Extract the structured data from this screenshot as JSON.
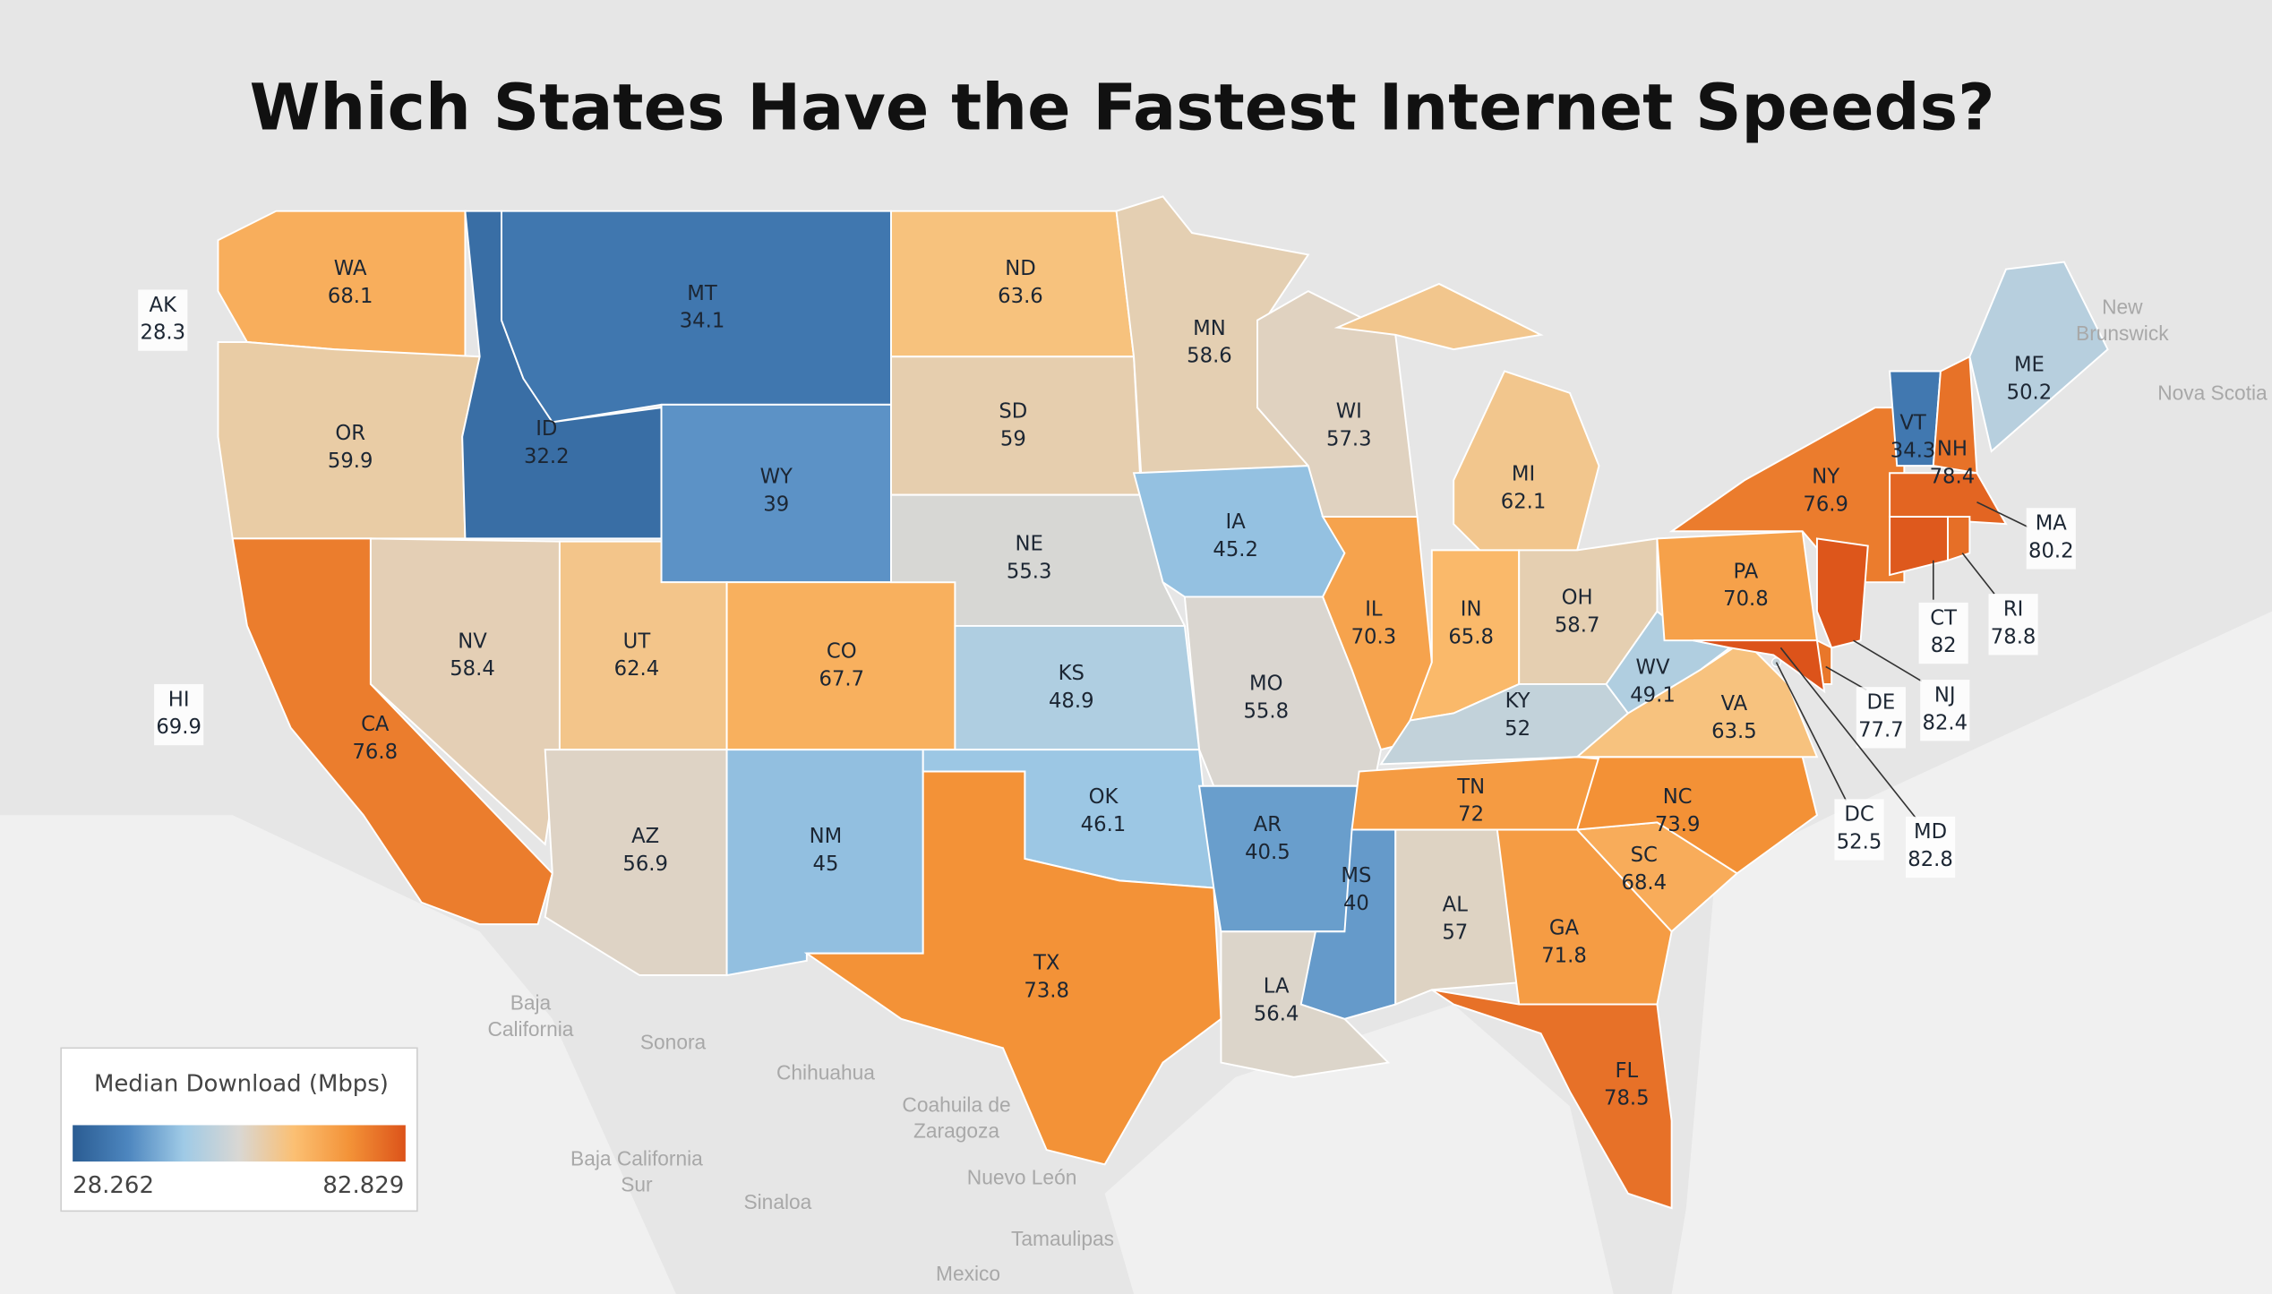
{
  "chart_data": {
    "type": "choropleth",
    "title": "Which States Have the Fastest Internet Speeds?",
    "states": [
      {
        "code": "WA",
        "value": 68.1
      },
      {
        "code": "OR",
        "value": 59.9
      },
      {
        "code": "CA",
        "value": 76.8
      },
      {
        "code": "NV",
        "value": 58.4
      },
      {
        "code": "ID",
        "value": 32.2
      },
      {
        "code": "MT",
        "value": 34.1
      },
      {
        "code": "WY",
        "value": 39.0
      },
      {
        "code": "UT",
        "value": 62.4
      },
      {
        "code": "CO",
        "value": 67.7
      },
      {
        "code": "AZ",
        "value": 56.9
      },
      {
        "code": "NM",
        "value": 45.0
      },
      {
        "code": "ND",
        "value": 63.6
      },
      {
        "code": "SD",
        "value": 59.0
      },
      {
        "code": "NE",
        "value": 55.3
      },
      {
        "code": "KS",
        "value": 48.9
      },
      {
        "code": "OK",
        "value": 46.1
      },
      {
        "code": "TX",
        "value": 73.8
      },
      {
        "code": "MN",
        "value": 58.6
      },
      {
        "code": "IA",
        "value": 45.2
      },
      {
        "code": "MO",
        "value": 55.8
      },
      {
        "code": "AR",
        "value": 40.5
      },
      {
        "code": "LA",
        "value": 56.4
      },
      {
        "code": "WI",
        "value": 57.3
      },
      {
        "code": "IL",
        "value": 70.3
      },
      {
        "code": "MI",
        "value": 62.1
      },
      {
        "code": "IN",
        "value": 65.8
      },
      {
        "code": "OH",
        "value": 58.7
      },
      {
        "code": "KY",
        "value": 52.0
      },
      {
        "code": "TN",
        "value": 72.0
      },
      {
        "code": "MS",
        "value": 40.0
      },
      {
        "code": "AL",
        "value": 57.0
      },
      {
        "code": "GA",
        "value": 71.8
      },
      {
        "code": "FL",
        "value": 78.5
      },
      {
        "code": "SC",
        "value": 68.4
      },
      {
        "code": "NC",
        "value": 73.9
      },
      {
        "code": "VA",
        "value": 63.5
      },
      {
        "code": "WV",
        "value": 49.1
      },
      {
        "code": "PA",
        "value": 70.8
      },
      {
        "code": "NY",
        "value": 76.9
      },
      {
        "code": "VT",
        "value": 34.3
      },
      {
        "code": "NH",
        "value": 78.4
      },
      {
        "code": "ME",
        "value": 50.2
      },
      {
        "code": "MA",
        "value": 80.2
      },
      {
        "code": "CT",
        "value": 82.0
      },
      {
        "code": "RI",
        "value": 78.8
      },
      {
        "code": "NJ",
        "value": 82.4
      },
      {
        "code": "DE",
        "value": 77.7
      },
      {
        "code": "MD",
        "value": 82.8
      },
      {
        "code": "DC",
        "value": 52.5
      },
      {
        "code": "AK",
        "value": 28.3
      },
      {
        "code": "HI",
        "value": 69.9
      }
    ],
    "legend": {
      "title": "Median Download (Mbps)",
      "min": 28.262,
      "max": 82.829
    },
    "colors": [
      "#2a5c92",
      "#4d86bf",
      "#9fcae6",
      "#d9d7d3",
      "#fbbf72",
      "#f39237",
      "#dc531a"
    ]
  },
  "places": [
    [
      "Baja",
      "California"
    ],
    [
      "Sonora"
    ],
    [
      "Chihuahua"
    ],
    [
      "Coahuila de",
      "Zaragoza"
    ],
    [
      "Baja California",
      "Sur"
    ],
    [
      "Nuevo León"
    ],
    [
      "Sinaloa"
    ],
    [
      "Tamaulipas"
    ],
    [
      "Mexico"
    ],
    [
      "New",
      "Brunswick"
    ],
    [
      "Nova Scotia"
    ]
  ]
}
